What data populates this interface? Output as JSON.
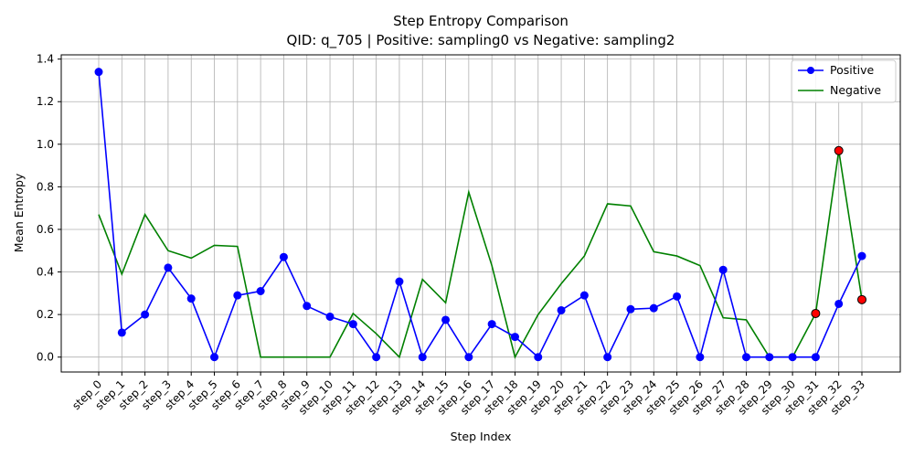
{
  "chart_data": {
    "type": "line",
    "title": "Step Entropy Comparison",
    "subtitle": "QID: q_705 | Positive: sampling0 vs Negative: sampling2",
    "xlabel": "Step Index",
    "ylabel": "Mean Entropy",
    "ylim": [
      -0.07,
      1.42
    ],
    "yticks": [
      "0.0",
      "0.2",
      "0.4",
      "0.6",
      "0.8",
      "1.0",
      "1.2",
      "1.4"
    ],
    "grid": true,
    "legend_position": "top-right",
    "categories": [
      "step_0",
      "step_1",
      "step_2",
      "step_3",
      "step_4",
      "step_5",
      "step_6",
      "step_7",
      "step_8",
      "step_9",
      "step_10",
      "step_11",
      "step_12",
      "step_13",
      "step_14",
      "step_15",
      "step_16",
      "step_17",
      "step_18",
      "step_19",
      "step_20",
      "step_21",
      "step_22",
      "step_23",
      "step_24",
      "step_25",
      "step_26",
      "step_27",
      "step_28",
      "step_29",
      "step_30",
      "step_31",
      "step_32",
      "step_33"
    ],
    "series": [
      {
        "name": "Positive",
        "color": "#0000ff",
        "marker": "circle",
        "values": [
          1.34,
          0.115,
          0.2,
          0.42,
          0.275,
          0.0,
          0.29,
          0.31,
          0.47,
          0.24,
          0.19,
          0.155,
          0.0,
          0.355,
          0.0,
          0.175,
          0.0,
          0.155,
          0.095,
          0.0,
          0.22,
          0.29,
          0.0,
          0.225,
          0.23,
          0.285,
          0.0,
          0.41,
          0.0,
          0.0,
          0.0,
          0.0,
          0.25,
          0.475
        ]
      },
      {
        "name": "Negative",
        "color": "#008000",
        "marker": "none",
        "values": [
          0.67,
          0.39,
          0.67,
          0.5,
          0.465,
          0.525,
          0.52,
          0.0,
          0.0,
          0.0,
          0.0,
          0.205,
          0.11,
          0.0,
          0.365,
          0.255,
          0.775,
          0.43,
          0.0,
          0.2,
          0.345,
          0.475,
          0.72,
          0.71,
          0.495,
          0.475,
          0.43,
          0.185,
          0.175,
          0.0,
          0.0,
          0.205,
          0.97,
          0.27
        ]
      }
    ],
    "highlight_points": {
      "color": "#ff0000",
      "x": [
        "step_31",
        "step_32",
        "step_33"
      ],
      "values": [
        0.205,
        0.97,
        0.27
      ]
    }
  }
}
